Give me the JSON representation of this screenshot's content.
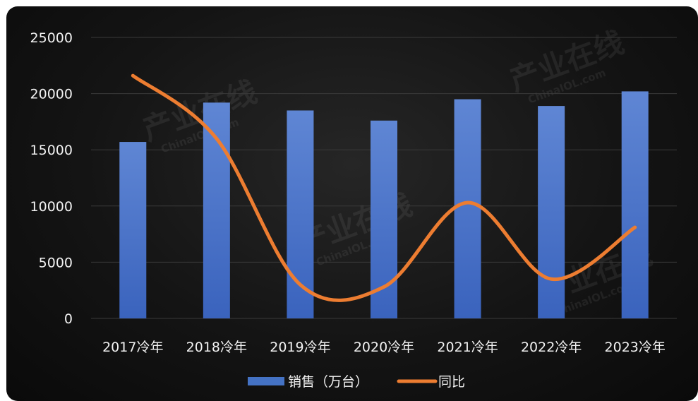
{
  "chart_data": {
    "type": "bar",
    "categories": [
      "2017冷年",
      "2018冷年",
      "2019冷年",
      "2020冷年",
      "2021冷年",
      "2022冷年",
      "2023冷年"
    ],
    "series": [
      {
        "name": "销售（万台）",
        "type": "bar",
        "values": [
          15700,
          19200,
          18500,
          17600,
          19500,
          18900,
          20200
        ],
        "color": "#4472c4"
      },
      {
        "name": "同比",
        "type": "line",
        "smooth": true,
        "values": [
          21600,
          16000,
          3000,
          2800,
          10300,
          3500,
          8100
        ],
        "color": "#ed7d31"
      }
    ],
    "ylim": [
      0,
      25000
    ],
    "yticks": [
      0,
      5000,
      10000,
      15000,
      20000,
      25000
    ],
    "grid": true,
    "legend_position": "bottom",
    "title": "",
    "xlabel": "",
    "ylabel": ""
  },
  "watermark": {
    "text": "产业在线",
    "subtext": "ChinaIOL.com"
  },
  "colors": {
    "background": "#141414",
    "grid": "#3a3a3a",
    "text": "#f2f2f2"
  }
}
